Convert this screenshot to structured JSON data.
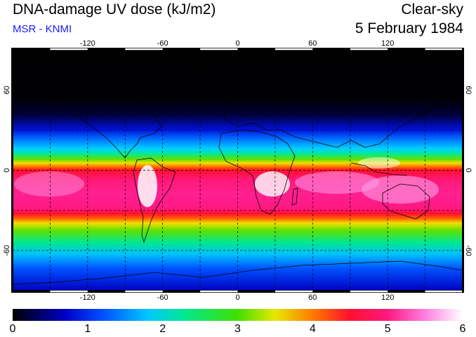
{
  "header": {
    "title": "DNA-damage UV dose (kJ/m2)",
    "source": "MSR - KNMI",
    "sky_condition": "Clear-sky",
    "date": "5 February 1984"
  },
  "map": {
    "projection": "equirectangular",
    "lon_range": [
      -180,
      180
    ],
    "lat_range": [
      -90,
      90
    ],
    "lon_ticks": [
      "-120",
      "-60",
      "0",
      "60",
      "120"
    ],
    "lon_tick_values": [
      -120,
      -60,
      0,
      60,
      120
    ],
    "lat_ticks": [
      "60",
      "0",
      "-60"
    ],
    "lat_tick_values": [
      60,
      0,
      -60
    ],
    "graticule_spacing_deg": 30
  },
  "colorbar": {
    "labels": [
      "0",
      "1",
      "2",
      "3",
      "4",
      "5",
      "6"
    ],
    "min": 0,
    "max": 6,
    "stops": [
      {
        "v": 0.0,
        "c": "#000000"
      },
      {
        "v": 0.7,
        "c": "#0000c8"
      },
      {
        "v": 1.2,
        "c": "#0050ff"
      },
      {
        "v": 1.8,
        "c": "#00c8ff"
      },
      {
        "v": 2.3,
        "c": "#00e890"
      },
      {
        "v": 3.0,
        "c": "#40e000"
      },
      {
        "v": 3.5,
        "c": "#e8e800"
      },
      {
        "v": 4.0,
        "c": "#ff7a00"
      },
      {
        "v": 4.5,
        "c": "#ff1030"
      },
      {
        "v": 5.0,
        "c": "#ff1880"
      },
      {
        "v": 5.5,
        "c": "#ff80e0"
      },
      {
        "v": 6.0,
        "c": "#ffffff"
      }
    ]
  },
  "colors": {
    "graticule": "#000000",
    "coastline": "#000000",
    "title_text": "#000000",
    "source_text": "#1a1aff"
  }
}
